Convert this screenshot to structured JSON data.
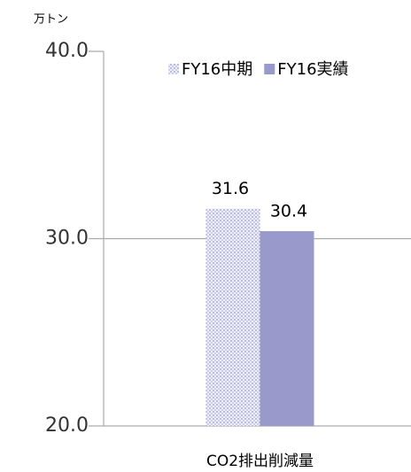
{
  "chart_data": {
    "type": "bar",
    "unit_label": "万トン",
    "categories": [
      "CO2排出削減量"
    ],
    "series": [
      {
        "name": "FY16中期",
        "color": "#9999cc",
        "pattern": "dots",
        "values": [
          31.6
        ]
      },
      {
        "name": "FY16実績",
        "color": "#9999cc",
        "values": [
          30.4
        ]
      }
    ],
    "ylim": [
      20,
      40
    ],
    "yticks": [
      {
        "value": 20,
        "label": "20.0"
      },
      {
        "value": 30,
        "label": "30.0"
      },
      {
        "value": 40,
        "label": "40.0"
      }
    ],
    "grid": true,
    "legend": "top-right"
  }
}
